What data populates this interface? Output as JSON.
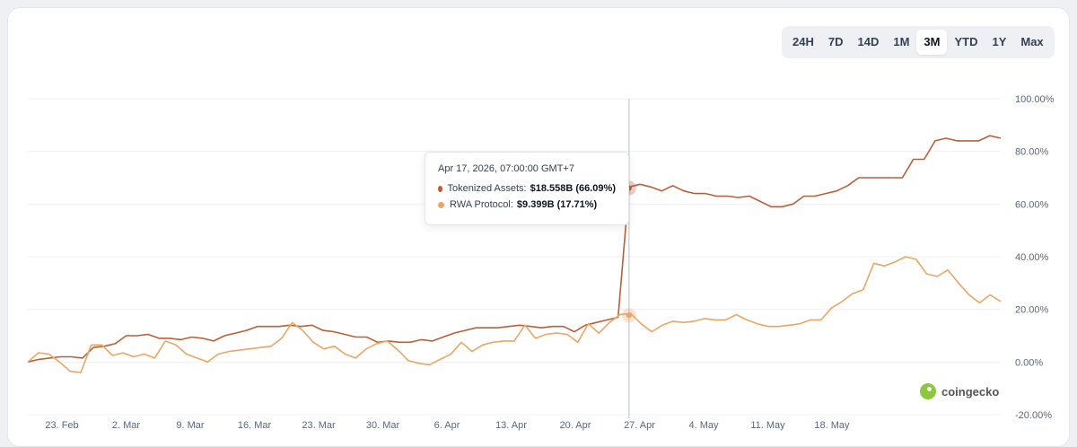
{
  "range_selector": {
    "options": [
      "24H",
      "7D",
      "14D",
      "1M",
      "3M",
      "YTD",
      "1Y",
      "Max"
    ],
    "selected": "3M"
  },
  "tooltip": {
    "date": "Apr 17, 2026, 07:00:00 GMT+7",
    "rows": [
      {
        "label": "Tokenized Assets:",
        "value": "$18.558B (66.09%)",
        "color": "#b8603a"
      },
      {
        "label": "RWA Protocol:",
        "value": "$9.399B (17.71%)",
        "color": "#e8a765"
      }
    ]
  },
  "brand": "coingecko",
  "chart_data": {
    "type": "line",
    "x_tick_labels": [
      "23. Feb",
      "2. Mar",
      "9. Mar",
      "16. Mar",
      "23. Mar",
      "30. Mar",
      "6. Apr",
      "13. Apr",
      "20. Apr",
      "27. Apr",
      "4. May",
      "11. May",
      "18. May"
    ],
    "y_tick_labels": [
      "100.00%",
      "80.00%",
      "60.00%",
      "40.00%",
      "20.00%",
      "0.00%",
      "-20.00%"
    ],
    "ylim": [
      -20,
      100
    ],
    "grid": true,
    "series": [
      {
        "name": "Tokenized Assets",
        "color": "#b8603a",
        "values": [
          0,
          1,
          1.5,
          2,
          2,
          1.5,
          5.5,
          6,
          7,
          10,
          10,
          10.5,
          9,
          9,
          8.5,
          9.5,
          9,
          8,
          10,
          11,
          12,
          13.5,
          13.5,
          13.5,
          14,
          13.5,
          14,
          12,
          11.5,
          10.5,
          9.5,
          9.5,
          7.5,
          8,
          7.5,
          7.5,
          8.5,
          8,
          9.5,
          11,
          12,
          13,
          13,
          13,
          13.5,
          14,
          13.5,
          13,
          13.5,
          13.5,
          11.5,
          14,
          15,
          16,
          17,
          66.5,
          67.5,
          66.5,
          65,
          67,
          65,
          64,
          64,
          63,
          63,
          62.5,
          63,
          61,
          59,
          59,
          60,
          63,
          63,
          64,
          65,
          67,
          70,
          70,
          70,
          70,
          70,
          77,
          77,
          84,
          85,
          84,
          84,
          84,
          86,
          85
        ]
      },
      {
        "name": "RWA Protocol",
        "color": "#e8a765",
        "values": [
          0,
          3.5,
          3,
          0,
          -3.5,
          -4,
          6.5,
          6.5,
          2.5,
          3.5,
          2,
          3,
          1.5,
          8,
          6.5,
          3,
          1.5,
          0,
          3,
          4,
          4.5,
          5,
          5.5,
          6,
          9,
          15,
          12,
          7.5,
          5,
          6,
          3,
          1.5,
          5,
          7,
          8,
          4.5,
          0.5,
          -0.5,
          -1,
          1,
          3,
          7.5,
          4,
          6.5,
          7.5,
          8,
          8,
          14,
          9,
          10.5,
          11,
          10.5,
          7.5,
          14.5,
          11,
          15,
          18,
          18.5,
          14.5,
          11.5,
          14,
          15.5,
          15,
          15.5,
          16.5,
          16,
          16,
          18,
          16,
          14.5,
          13.5,
          13.5,
          14,
          14.5,
          16,
          16,
          20.5,
          23,
          26,
          27.5,
          37.5,
          36.5,
          38,
          40,
          39,
          33.5,
          32.5,
          35,
          30,
          25.5,
          22.5,
          25.5,
          23
        ]
      }
    ],
    "hover": {
      "x_label": "Apr 17, 2026",
      "tokenized_assets_pct": 66.09,
      "rwa_protocol_pct": 17.71
    }
  }
}
